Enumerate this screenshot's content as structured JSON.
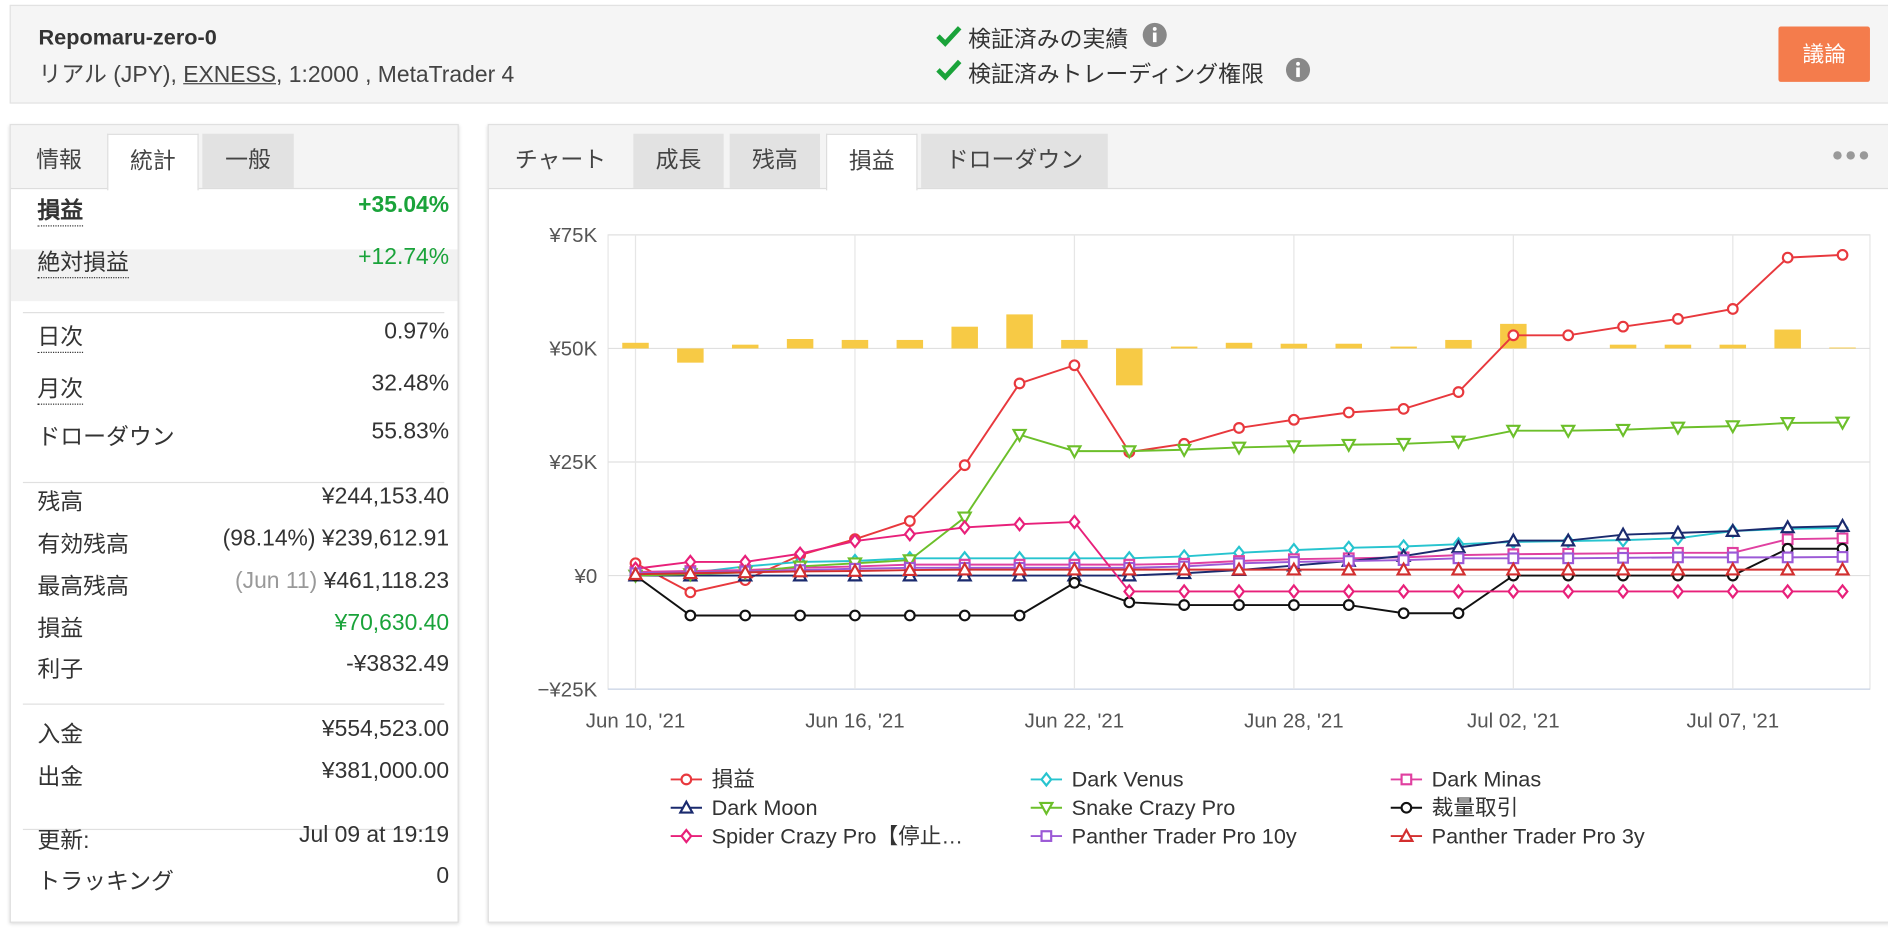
{
  "header": {
    "account_name": "Repomaru-zero-0",
    "account_type": "リアル (JPY), ",
    "broker": "EXNESS",
    "account_rest": ", 1:2000 , MetaTrader 4",
    "checks": [
      "検証済みの実績",
      "検証済みトレーディング権限"
    ],
    "button": "議論"
  },
  "stats_tabs": [
    "情報",
    "統計",
    "一般"
  ],
  "stats": [
    {
      "label": "損益",
      "value": "+35.04%"
    },
    {
      "label": "絶対損益",
      "value": "+12.74%"
    },
    {
      "label": "日次",
      "value": "0.97%"
    },
    {
      "label": "月次",
      "value": "32.48%"
    },
    {
      "label": "ドローダウン",
      "value": "55.83%"
    },
    {
      "label": "残高",
      "value": "¥244,153.40"
    },
    {
      "label": "有効残高",
      "note": "(98.14%)",
      "value": "¥239,612.91"
    },
    {
      "label": "最高残高",
      "note": "(Jun 11)",
      "value": "¥461,118.23"
    },
    {
      "label": "損益",
      "value": "¥70,630.40"
    },
    {
      "label": "利子",
      "value": "-¥3832.49"
    },
    {
      "label": "入金",
      "value": "¥554,523.00"
    },
    {
      "label": "出金",
      "value": "¥381,000.00"
    },
    {
      "label": "更新:",
      "value": "Jul 09 at 19:19"
    },
    {
      "label": "トラッキング",
      "value": "0"
    }
  ],
  "chart_tabs": [
    "チャート",
    "成長",
    "残高",
    "損益",
    "ドローダウン"
  ],
  "chart_data": {
    "type": "line",
    "categories": [
      "Jun 10, '21",
      null,
      null,
      null,
      "Jun 16, '21",
      null,
      null,
      null,
      "Jun 22, '21",
      null,
      null,
      null,
      "Jun 28, '21",
      null,
      null,
      null,
      "Jul 02, '21",
      null,
      null,
      null,
      "Jul 07, '21",
      null,
      null
    ],
    "ylim": [
      -25000,
      75000
    ],
    "yticks": [
      {
        "value": -25000,
        "label": "−¥25K"
      },
      {
        "value": 0,
        "label": "¥0"
      },
      {
        "value": 25000,
        "label": "¥25K"
      },
      {
        "value": 50000,
        "label": "¥50K"
      },
      {
        "value": 75000,
        "label": "¥75K"
      }
    ],
    "y2lim": [
      -180000,
      60000
    ],
    "grid": true,
    "series": [
      {
        "name": "損益",
        "color": "#e8383d",
        "marker": "circle",
        "values": [
          2700,
          -3700,
          -1000,
          4500,
          8000,
          12000,
          24300,
          42300,
          46300,
          27200,
          29000,
          32500,
          34300,
          35900,
          36700,
          40400,
          52900,
          52900,
          54800,
          56500,
          58700,
          70000,
          70600
        ]
      },
      {
        "name": "Dark Venus",
        "color": "#27c4cf",
        "marker": "diamond",
        "values": [
          0,
          600,
          2000,
          3000,
          3200,
          3800,
          3800,
          3800,
          3800,
          3800,
          4200,
          5000,
          5600,
          6100,
          6400,
          6900,
          7400,
          7600,
          7800,
          8200,
          9800,
          10300,
          10500
        ]
      },
      {
        "name": "Dark Minas",
        "color": "#e040a0",
        "marker": "square",
        "values": [
          800,
          1000,
          1200,
          1700,
          2000,
          2400,
          2400,
          2400,
          2400,
          2400,
          2600,
          3200,
          3600,
          3800,
          4000,
          4500,
          4700,
          4800,
          4900,
          5000,
          5000,
          8000,
          8200
        ]
      },
      {
        "name": "Dark Moon",
        "color": "#1a2a6e",
        "marker": "triangle",
        "values": [
          0,
          0,
          0,
          0,
          0,
          0,
          0,
          0,
          0,
          0,
          500,
          1200,
          2200,
          3200,
          4300,
          6200,
          7700,
          7700,
          9000,
          9400,
          9800,
          10600,
          10900
        ]
      },
      {
        "name": "Snake Crazy Pro",
        "color": "#6cbf2a",
        "marker": "triangle-down",
        "values": [
          0,
          300,
          700,
          2000,
          2700,
          3400,
          12800,
          31000,
          27400,
          27400,
          27700,
          28200,
          28500,
          28800,
          29000,
          29500,
          31900,
          31900,
          32100,
          32600,
          32900,
          33600,
          33700
        ]
      },
      {
        "name": "裁量取引",
        "color": "#111111",
        "marker": "circle",
        "values": [
          0,
          -8800,
          -8800,
          -8800,
          -8800,
          -8800,
          -8800,
          -8800,
          -1600,
          -5900,
          -6500,
          -6500,
          -6500,
          -6500,
          -8300,
          -8300,
          0,
          0,
          0,
          0,
          0,
          5900,
          5900
        ]
      },
      {
        "name": "Spider Crazy Pro【停止…",
        "color": "#e8207a",
        "marker": "diamond",
        "values": [
          1500,
          3000,
          3000,
          4800,
          7600,
          9100,
          10600,
          11300,
          11800,
          -3500,
          -3500,
          -3500,
          -3500,
          -3500,
          -3500,
          -3500,
          -3500,
          -3500,
          -3500,
          -3500,
          -3500,
          -3500,
          -3500
        ]
      },
      {
        "name": "Panther Trader Pro 10y",
        "color": "#9b59d6",
        "marker": "square",
        "values": [
          500,
          700,
          900,
          1200,
          1500,
          1700,
          1700,
          1700,
          1700,
          1700,
          2000,
          2700,
          3000,
          3200,
          3400,
          3800,
          3800,
          3800,
          3900,
          4000,
          4000,
          4000,
          4100
        ]
      },
      {
        "name": "Panther Trader Pro 3y",
        "color": "#d32f2f",
        "marker": "triangle",
        "values": [
          300,
          500,
          700,
          900,
          1000,
          1200,
          1300,
          1300,
          1300,
          1300,
          1300,
          1300,
          1300,
          1300,
          1300,
          1300,
          1300,
          1300,
          1300,
          1300,
          1300,
          1300,
          1300
        ]
      },
      {
        "type": "bar",
        "axis": "y2",
        "color": "#f7ca45",
        "values": [
          3000,
          -7500,
          2000,
          5000,
          4500,
          4500,
          11500,
          18000,
          4500,
          -19500,
          1000,
          3000,
          2500,
          2500,
          1000,
          4500,
          13000,
          0,
          2000,
          2000,
          2000,
          10000,
          500
        ]
      }
    ]
  }
}
